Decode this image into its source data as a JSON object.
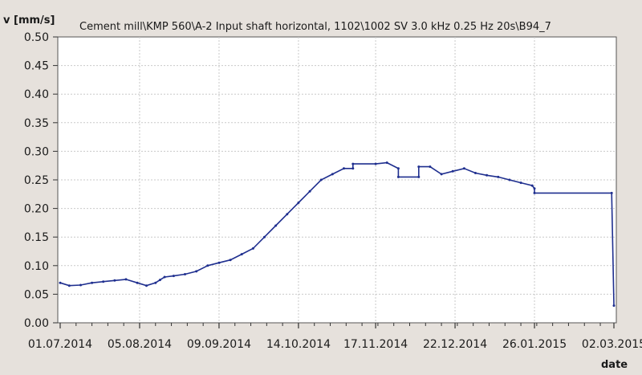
{
  "chart_data": {
    "type": "line",
    "title": "Cement mill\\KMP 560\\A-2 Input shaft horizontal, 1102\\1002 SV 3.0 kHz 0.25 Hz 20s\\B94_7",
    "ylabel": "v [mm/s]",
    "xlabel": "date",
    "ylim": [
      0,
      0.5
    ],
    "xlim": [
      "2014-07-01",
      "2015-03-02"
    ],
    "yticks": [
      "0.00",
      "0.05",
      "0.10",
      "0.15",
      "0.20",
      "0.25",
      "0.30",
      "0.35",
      "0.40",
      "0.45",
      "0.50"
    ],
    "xticks": [
      "01.07.2014",
      "05.08.2014",
      "09.09.2014",
      "14.10.2014",
      "17.11.2014",
      "22.12.2014",
      "26.01.2015",
      "02.03.2015"
    ],
    "grid": true,
    "line_color": "#1f2f8f",
    "series": [
      {
        "x": [
          "2014-07-01",
          "2014-07-05",
          "2014-07-10",
          "2014-07-15",
          "2014-07-20",
          "2014-07-25",
          "2014-07-30",
          "2014-08-04",
          "2014-08-08",
          "2014-08-12",
          "2014-08-14",
          "2014-08-16",
          "2014-08-20",
          "2014-08-25",
          "2014-08-30",
          "2014-09-04",
          "2014-09-09",
          "2014-09-14",
          "2014-09-19",
          "2014-09-24",
          "2014-09-29",
          "2014-10-04",
          "2014-10-09",
          "2014-10-14",
          "2014-10-19",
          "2014-10-24",
          "2014-10-29",
          "2014-11-03",
          "2014-11-07",
          "2014-11-07",
          "2014-11-17",
          "2014-11-22",
          "2014-11-27",
          "2014-11-27",
          "2014-12-06",
          "2014-12-06",
          "2014-12-11",
          "2014-12-16",
          "2014-12-21",
          "2014-12-26",
          "2014-12-31",
          "2015-01-05",
          "2015-01-10",
          "2015-01-15",
          "2015-01-20",
          "2015-01-25",
          "2015-01-26",
          "2015-01-26",
          "2015-03-01",
          "2015-03-02"
        ],
        "y": [
          0.07,
          0.065,
          0.066,
          0.07,
          0.072,
          0.074,
          0.076,
          0.07,
          0.065,
          0.07,
          0.075,
          0.08,
          0.082,
          0.085,
          0.09,
          0.1,
          0.105,
          0.11,
          0.12,
          0.13,
          0.15,
          0.17,
          0.19,
          0.21,
          0.23,
          0.25,
          0.26,
          0.27,
          0.27,
          0.278,
          0.278,
          0.28,
          0.27,
          0.255,
          0.255,
          0.273,
          0.273,
          0.26,
          0.265,
          0.27,
          0.262,
          0.258,
          0.255,
          0.25,
          0.245,
          0.24,
          0.235,
          0.227,
          0.227,
          0.03
        ]
      }
    ]
  }
}
